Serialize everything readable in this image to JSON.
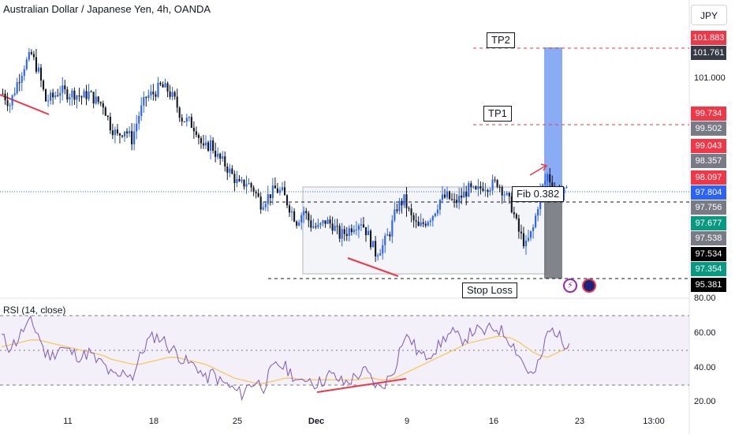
{
  "header": {
    "title": "Australian Dollar / Japanese Yen, 4h, OANDA",
    "currency_button": "JPY"
  },
  "annotations": {
    "tp1": "TP1",
    "tp2": "TP2",
    "fib": "Fib 0.382",
    "stop_loss": "Stop Loss"
  },
  "rsi": {
    "title": "RSI (14, close)",
    "y_ticks": [
      "80.00",
      "60.00",
      "40.00",
      "20.00"
    ]
  },
  "price_axis": {
    "ticks": [
      "101.000"
    ],
    "tags": [
      {
        "label": "101.883",
        "color": "#f23645"
      },
      {
        "label": "101.761",
        "color": "#363a45"
      },
      {
        "label": "99.734",
        "color": "#f23645"
      },
      {
        "label": "99.502",
        "color": "#787b86"
      },
      {
        "label": "99.043",
        "color": "#f23645"
      },
      {
        "label": "98.357",
        "color": "#787b86"
      },
      {
        "label": "98.097",
        "color": "#f23645"
      },
      {
        "label": "97.804",
        "color": "#2962ff"
      },
      {
        "label": "97.756",
        "color": "#787b86"
      },
      {
        "label": "97.677",
        "color": "#089981"
      },
      {
        "label": "97.538",
        "color": "#787b86"
      },
      {
        "label": "97.534",
        "color": "#000000"
      },
      {
        "label": "97.354",
        "color": "#089981"
      },
      {
        "label": "95.381",
        "color": "#000000"
      }
    ]
  },
  "x_axis": {
    "labels": [
      "11",
      "18",
      "25",
      "Dec",
      "9",
      "16",
      "23",
      "13:00"
    ]
  },
  "chart_data": {
    "type": "candlestick",
    "symbol": "Australian Dollar / Japanese Yen",
    "interval": "4h",
    "source": "OANDA",
    "x_labels": [
      "11",
      "18",
      "25",
      "Dec",
      "9",
      "16",
      "23",
      "13:00"
    ],
    "price_levels": {
      "tp2": 101.883,
      "tp1": 99.734,
      "fib_0382": 97.756,
      "entry": 97.756,
      "stop_loss": 95.381,
      "current": 97.804
    },
    "close_path": [
      100.6,
      100.3,
      100.9,
      101.4,
      101.7,
      101.2,
      100.4,
      100.5,
      100.7,
      100.6,
      100.6,
      100.5,
      100.6,
      100.4,
      100.3,
      99.7,
      99.4,
      99.6,
      99.3,
      100.0,
      100.5,
      100.6,
      100.8,
      100.7,
      100.4,
      99.9,
      99.8,
      99.6,
      99.0,
      99.2,
      98.8,
      98.6,
      98.3,
      98.0,
      98.1,
      97.9,
      97.5,
      97.7,
      97.9,
      97.8,
      97.4,
      97.0,
      97.3,
      96.9,
      96.8,
      97.0,
      96.9,
      96.6,
      96.7,
      96.9,
      97.0,
      96.6,
      96.1,
      96.3,
      96.7,
      97.4,
      97.6,
      97.1,
      96.8,
      97.0,
      97.2,
      97.6,
      97.7,
      97.5,
      97.7,
      97.9,
      97.8,
      98.0,
      98.0,
      98.1,
      97.8,
      97.4,
      96.7,
      96.3,
      96.8,
      97.8,
      98.3,
      97.9,
      97.8
    ],
    "rsi": {
      "name": "RSI (14, close)",
      "ylim": [
        20,
        80
      ],
      "levels": [
        70,
        50,
        30
      ],
      "values": [
        58,
        52,
        55,
        62,
        66,
        60,
        48,
        47,
        52,
        50,
        48,
        46,
        49,
        44,
        42,
        36,
        34,
        38,
        35,
        46,
        55,
        58,
        57,
        52,
        49,
        44,
        42,
        40,
        33,
        37,
        32,
        30,
        27,
        25,
        30,
        32,
        29,
        38,
        42,
        40,
        36,
        30,
        35,
        31,
        32,
        36,
        34,
        31,
        33,
        36,
        38,
        32,
        28,
        33,
        40,
        55,
        58,
        50,
        46,
        49,
        52,
        58,
        60,
        56,
        58,
        62,
        60,
        62,
        63,
        60,
        55,
        48,
        40,
        35,
        44,
        60,
        62,
        55,
        54
      ],
      "ma_values": [
        52,
        53,
        54,
        55,
        56,
        56,
        55,
        54,
        53,
        52,
        51,
        50,
        49,
        48,
        47,
        45,
        44,
        43,
        42,
        42,
        43,
        44,
        45,
        46,
        46,
        45,
        44,
        43,
        42,
        40,
        38,
        36,
        34,
        33,
        32,
        31,
        31,
        32,
        33,
        34,
        34,
        33,
        33,
        33,
        33,
        33,
        33,
        33,
        33,
        33,
        34,
        34,
        33,
        33,
        34,
        36,
        38,
        40,
        42,
        44,
        46,
        48,
        50,
        52,
        54,
        55,
        56,
        57,
        58,
        58,
        57,
        55,
        52,
        49,
        47,
        46,
        48,
        50,
        52
      ]
    }
  },
  "colors": {
    "up": "#089981",
    "candle_blue": "#2962ff",
    "candle_dark": "#131722",
    "trendline": "#f23645",
    "rsi_line": "#7e57c2",
    "rsi_ma": "#f7c85c",
    "target_zone": "#5b8cf0",
    "stop_zone": "#787b86"
  }
}
